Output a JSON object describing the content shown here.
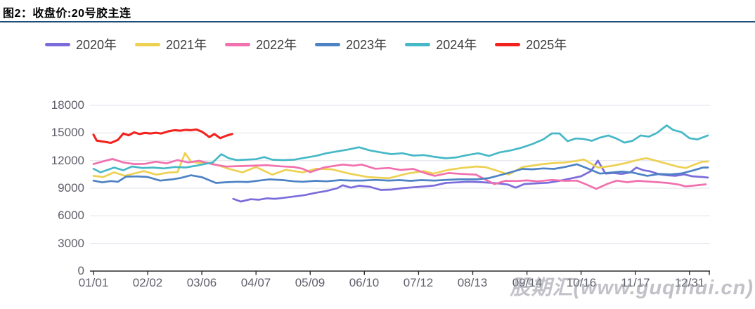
{
  "header": {
    "title": "图2：收盘价:20号胶主连",
    "rule_color": "#1F4E79"
  },
  "watermark": {
    "text": "股期汇(www.guqihui.cn)"
  },
  "chart_data": {
    "type": "line",
    "title": "收盘价:20号胶主连",
    "legend_position": "top",
    "grid": true,
    "x_axis": {
      "kind": "categorical-trading-dates",
      "tick_labels": [
        "01/01",
        "02/02",
        "03/06",
        "04/07",
        "05/09",
        "06/10",
        "07/12",
        "08/13",
        "09/14",
        "10/16",
        "11/17",
        "12/31"
      ]
    },
    "y_axis": {
      "ticks": [
        0,
        3000,
        6000,
        9000,
        12000,
        15000,
        18000
      ],
      "range": [
        0,
        18000
      ]
    },
    "note": "series points are [x,value]; x is in x-axis tick-index units (0 = 01/01 tick, 11 = 12/31 tick)",
    "series": [
      {
        "name": "2020年",
        "color": "#7B6CDB",
        "points": [
          [
            2.58,
            7850
          ],
          [
            2.72,
            7550
          ],
          [
            2.9,
            7800
          ],
          [
            3.05,
            7750
          ],
          [
            3.2,
            7900
          ],
          [
            3.35,
            7850
          ],
          [
            3.5,
            7950
          ],
          [
            3.7,
            8100
          ],
          [
            3.9,
            8250
          ],
          [
            4.1,
            8500
          ],
          [
            4.3,
            8700
          ],
          [
            4.5,
            9000
          ],
          [
            4.6,
            9320
          ],
          [
            4.75,
            9060
          ],
          [
            4.9,
            9270
          ],
          [
            5.1,
            9150
          ],
          [
            5.3,
            8810
          ],
          [
            5.5,
            8850
          ],
          [
            5.7,
            9000
          ],
          [
            5.9,
            9100
          ],
          [
            6.1,
            9190
          ],
          [
            6.3,
            9300
          ],
          [
            6.5,
            9570
          ],
          [
            6.7,
            9630
          ],
          [
            6.9,
            9700
          ],
          [
            7.1,
            9680
          ],
          [
            7.3,
            9600
          ],
          [
            7.5,
            9500
          ],
          [
            7.65,
            9400
          ],
          [
            7.79,
            9060
          ],
          [
            7.95,
            9450
          ],
          [
            8.1,
            9500
          ],
          [
            8.25,
            9550
          ],
          [
            8.4,
            9600
          ],
          [
            8.6,
            9800
          ],
          [
            8.83,
            10080
          ],
          [
            9.0,
            10300
          ],
          [
            9.18,
            10850
          ],
          [
            9.31,
            12000
          ],
          [
            9.45,
            10590
          ],
          [
            9.6,
            10650
          ],
          [
            9.75,
            10550
          ],
          [
            9.9,
            10700
          ],
          [
            10.02,
            11240
          ],
          [
            10.15,
            10950
          ],
          [
            10.26,
            10850
          ],
          [
            10.45,
            10500
          ],
          [
            10.6,
            10400
          ],
          [
            10.74,
            10340
          ],
          [
            10.9,
            10500
          ],
          [
            11.05,
            10300
          ],
          [
            11.25,
            10210
          ],
          [
            11.34,
            10150
          ]
        ]
      },
      {
        "name": "2021年",
        "color": "#EDD152",
        "points": [
          [
            0,
            10340
          ],
          [
            0.18,
            10210
          ],
          [
            0.38,
            10720
          ],
          [
            0.58,
            10340
          ],
          [
            0.75,
            10600
          ],
          [
            0.93,
            10850
          ],
          [
            1.16,
            10470
          ],
          [
            1.39,
            10700
          ],
          [
            1.55,
            10750
          ],
          [
            1.69,
            12820
          ],
          [
            1.8,
            11880
          ],
          [
            1.95,
            11750
          ],
          [
            2.1,
            11800
          ],
          [
            2.3,
            11490
          ],
          [
            2.5,
            11100
          ],
          [
            2.75,
            10720
          ],
          [
            3.0,
            11300
          ],
          [
            3.3,
            10470
          ],
          [
            3.55,
            11000
          ],
          [
            3.86,
            10720
          ],
          [
            4.11,
            11110
          ],
          [
            4.4,
            11050
          ],
          [
            4.72,
            10590
          ],
          [
            5.06,
            10210
          ],
          [
            5.45,
            10080
          ],
          [
            5.8,
            10600
          ],
          [
            6.1,
            10850
          ],
          [
            6.28,
            10590
          ],
          [
            6.54,
            10980
          ],
          [
            6.8,
            11200
          ],
          [
            7.06,
            11360
          ],
          [
            7.23,
            11290
          ],
          [
            7.45,
            10900
          ],
          [
            7.66,
            10490
          ],
          [
            7.92,
            11300
          ],
          [
            8.27,
            11600
          ],
          [
            8.5,
            11740
          ],
          [
            8.7,
            11800
          ],
          [
            8.9,
            11950
          ],
          [
            9.05,
            12130
          ],
          [
            9.31,
            11240
          ],
          [
            9.55,
            11400
          ],
          [
            9.8,
            11700
          ],
          [
            10.08,
            12130
          ],
          [
            10.21,
            12260
          ],
          [
            10.5,
            11800
          ],
          [
            10.77,
            11360
          ],
          [
            10.93,
            11200
          ],
          [
            11.23,
            11870
          ],
          [
            11.34,
            11900
          ]
        ]
      },
      {
        "name": "2022年",
        "color": "#F170AE",
        "points": [
          [
            0,
            11620
          ],
          [
            0.2,
            11950
          ],
          [
            0.35,
            12180
          ],
          [
            0.55,
            11800
          ],
          [
            0.75,
            11620
          ],
          [
            0.95,
            11650
          ],
          [
            1.15,
            11880
          ],
          [
            1.35,
            11700
          ],
          [
            1.55,
            12050
          ],
          [
            1.75,
            11800
          ],
          [
            1.95,
            11980
          ],
          [
            2.2,
            11600
          ],
          [
            2.45,
            11350
          ],
          [
            2.7,
            11400
          ],
          [
            2.95,
            11450
          ],
          [
            3.2,
            11500
          ],
          [
            3.45,
            11380
          ],
          [
            3.7,
            11300
          ],
          [
            3.86,
            11110
          ],
          [
            4.0,
            10750
          ],
          [
            4.25,
            11240
          ],
          [
            4.6,
            11570
          ],
          [
            4.8,
            11450
          ],
          [
            4.95,
            11570
          ],
          [
            5.2,
            11110
          ],
          [
            5.45,
            11200
          ],
          [
            5.67,
            10980
          ],
          [
            5.9,
            11100
          ],
          [
            6.15,
            10590
          ],
          [
            6.3,
            10340
          ],
          [
            6.55,
            10650
          ],
          [
            6.8,
            10550
          ],
          [
            7.06,
            10470
          ],
          [
            7.23,
            9950
          ],
          [
            7.4,
            9440
          ],
          [
            7.6,
            9800
          ],
          [
            7.8,
            9780
          ],
          [
            8.0,
            9850
          ],
          [
            8.2,
            9750
          ],
          [
            8.46,
            9900
          ],
          [
            8.7,
            9800
          ],
          [
            8.92,
            9820
          ],
          [
            9.1,
            9400
          ],
          [
            9.28,
            8930
          ],
          [
            9.5,
            9500
          ],
          [
            9.66,
            9820
          ],
          [
            9.85,
            9650
          ],
          [
            10.05,
            9800
          ],
          [
            10.3,
            9700
          ],
          [
            10.6,
            9570
          ],
          [
            10.8,
            9400
          ],
          [
            10.93,
            9200
          ],
          [
            11.1,
            9300
          ],
          [
            11.3,
            9420
          ]
        ]
      },
      {
        "name": "2023年",
        "color": "#4D82C4",
        "points": [
          [
            0,
            9820
          ],
          [
            0.16,
            9630
          ],
          [
            0.32,
            9780
          ],
          [
            0.45,
            9700
          ],
          [
            0.6,
            10260
          ],
          [
            0.8,
            10280
          ],
          [
            1.0,
            10220
          ],
          [
            1.23,
            9820
          ],
          [
            1.45,
            9960
          ],
          [
            1.6,
            10100
          ],
          [
            1.8,
            10400
          ],
          [
            2.0,
            10200
          ],
          [
            2.26,
            9570
          ],
          [
            2.45,
            9650
          ],
          [
            2.65,
            9700
          ],
          [
            2.85,
            9680
          ],
          [
            3.05,
            9820
          ],
          [
            3.25,
            9960
          ],
          [
            3.5,
            9880
          ],
          [
            3.7,
            9750
          ],
          [
            3.86,
            9700
          ],
          [
            4.1,
            9800
          ],
          [
            4.3,
            9750
          ],
          [
            4.55,
            9880
          ],
          [
            4.75,
            9830
          ],
          [
            4.95,
            9830
          ],
          [
            5.2,
            9900
          ],
          [
            5.45,
            9830
          ],
          [
            5.65,
            9880
          ],
          [
            5.85,
            9800
          ],
          [
            6.05,
            9880
          ],
          [
            6.3,
            9830
          ],
          [
            6.5,
            9900
          ],
          [
            6.75,
            9960
          ],
          [
            7.06,
            9960
          ],
          [
            7.3,
            10100
          ],
          [
            7.55,
            10490
          ],
          [
            7.92,
            11100
          ],
          [
            8.1,
            11050
          ],
          [
            8.3,
            11150
          ],
          [
            8.5,
            11100
          ],
          [
            8.7,
            11300
          ],
          [
            8.92,
            11600
          ],
          [
            9.1,
            11200
          ],
          [
            9.35,
            10590
          ],
          [
            9.55,
            10700
          ],
          [
            9.75,
            10800
          ],
          [
            9.95,
            10700
          ],
          [
            10.22,
            10340
          ],
          [
            10.45,
            10550
          ],
          [
            10.65,
            10500
          ],
          [
            10.85,
            10600
          ],
          [
            11.05,
            10900
          ],
          [
            11.25,
            11240
          ],
          [
            11.34,
            11250
          ]
        ]
      },
      {
        "name": "2024年",
        "color": "#46B8C6",
        "points": [
          [
            0,
            11110
          ],
          [
            0.13,
            10720
          ],
          [
            0.38,
            11240
          ],
          [
            0.55,
            10950
          ],
          [
            0.71,
            11360
          ],
          [
            0.9,
            11200
          ],
          [
            1.1,
            11240
          ],
          [
            1.3,
            11150
          ],
          [
            1.5,
            11300
          ],
          [
            1.7,
            11250
          ],
          [
            1.9,
            11450
          ],
          [
            2.05,
            11620
          ],
          [
            2.2,
            11800
          ],
          [
            2.36,
            12700
          ],
          [
            2.5,
            12250
          ],
          [
            2.65,
            12050
          ],
          [
            2.8,
            12100
          ],
          [
            3.0,
            12150
          ],
          [
            3.15,
            12380
          ],
          [
            3.3,
            12100
          ],
          [
            3.5,
            12050
          ],
          [
            3.7,
            12100
          ],
          [
            3.9,
            12300
          ],
          [
            4.1,
            12500
          ],
          [
            4.3,
            12800
          ],
          [
            4.5,
            13000
          ],
          [
            4.7,
            13200
          ],
          [
            4.9,
            13450
          ],
          [
            5.1,
            13100
          ],
          [
            5.3,
            12900
          ],
          [
            5.5,
            12700
          ],
          [
            5.7,
            12800
          ],
          [
            5.9,
            12550
          ],
          [
            6.1,
            12600
          ],
          [
            6.3,
            12400
          ],
          [
            6.5,
            12250
          ],
          [
            6.7,
            12350
          ],
          [
            6.9,
            12600
          ],
          [
            7.1,
            12800
          ],
          [
            7.3,
            12500
          ],
          [
            7.5,
            12900
          ],
          [
            7.7,
            13100
          ],
          [
            7.9,
            13400
          ],
          [
            8.1,
            13800
          ],
          [
            8.3,
            14300
          ],
          [
            8.46,
            14950
          ],
          [
            8.6,
            14950
          ],
          [
            8.75,
            14100
          ],
          [
            8.9,
            14400
          ],
          [
            9.05,
            14350
          ],
          [
            9.2,
            14150
          ],
          [
            9.35,
            14500
          ],
          [
            9.5,
            14730
          ],
          [
            9.65,
            14400
          ],
          [
            9.8,
            13950
          ],
          [
            9.95,
            14150
          ],
          [
            10.1,
            14730
          ],
          [
            10.25,
            14600
          ],
          [
            10.4,
            15000
          ],
          [
            10.58,
            15830
          ],
          [
            10.7,
            15320
          ],
          [
            10.85,
            15100
          ],
          [
            11.0,
            14430
          ],
          [
            11.15,
            14300
          ],
          [
            11.34,
            14730
          ]
        ]
      },
      {
        "name": "2025年",
        "color": "#F2231E",
        "points": [
          [
            0,
            14810
          ],
          [
            0.06,
            14170
          ],
          [
            0.2,
            14040
          ],
          [
            0.32,
            13920
          ],
          [
            0.45,
            14250
          ],
          [
            0.55,
            14940
          ],
          [
            0.65,
            14750
          ],
          [
            0.75,
            15060
          ],
          [
            0.85,
            14890
          ],
          [
            0.95,
            15000
          ],
          [
            1.05,
            14940
          ],
          [
            1.15,
            15020
          ],
          [
            1.25,
            14940
          ],
          [
            1.39,
            15190
          ],
          [
            1.5,
            15300
          ],
          [
            1.6,
            15250
          ],
          [
            1.7,
            15340
          ],
          [
            1.8,
            15300
          ],
          [
            1.9,
            15380
          ],
          [
            2.0,
            15150
          ],
          [
            2.05,
            14940
          ],
          [
            2.14,
            14550
          ],
          [
            2.23,
            14890
          ],
          [
            2.34,
            14430
          ],
          [
            2.44,
            14680
          ],
          [
            2.56,
            14890
          ]
        ]
      }
    ]
  }
}
